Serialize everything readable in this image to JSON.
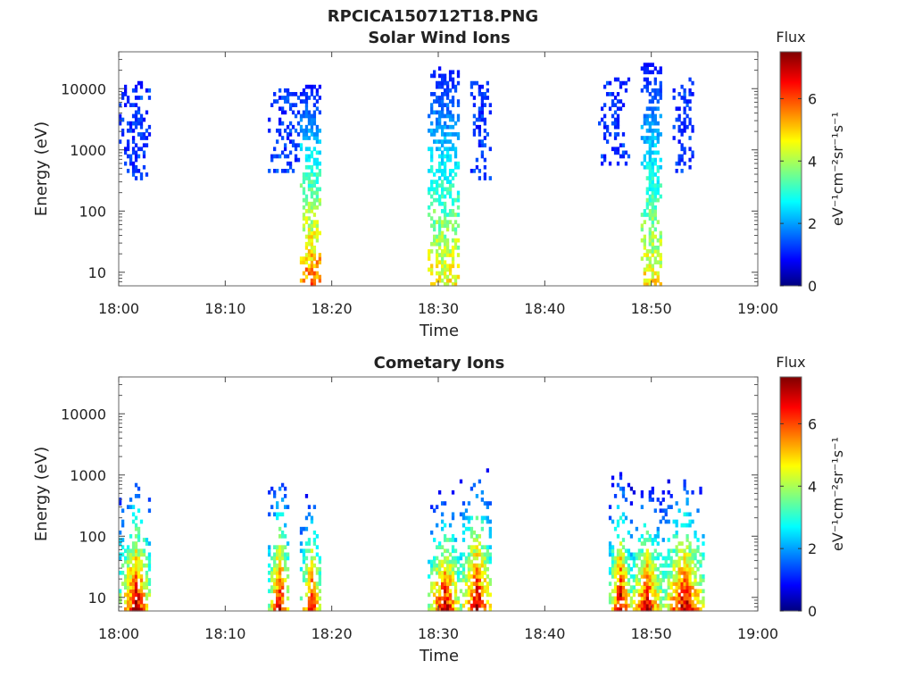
{
  "figure": {
    "title": "RPCICA150712T18.PNG"
  },
  "chart_data": [
    {
      "type": "heatmap",
      "title": "Solar Wind Ions",
      "xlabel": "Time",
      "ylabel": "Energy (eV)",
      "y_scale": "log",
      "ylim": [
        6,
        40000
      ],
      "xlim": [
        "18:00",
        "19:00"
      ],
      "x_ticks": [
        "18:00",
        "18:10",
        "18:20",
        "18:30",
        "18:40",
        "18:50",
        "19:00"
      ],
      "y_ticks": [
        "10",
        "100",
        "1000",
        "10000"
      ],
      "colorbar": {
        "label": "Flux",
        "units": "eV⁻¹cm⁻²sr⁻¹s⁻¹",
        "range": [
          0,
          7.5
        ],
        "ticks": [
          "0",
          "2",
          "4",
          "6"
        ],
        "colormap": "jet"
      },
      "bursts": [
        {
          "t": [
            "18:00",
            "18:03"
          ],
          "energy_eV": [
            300,
            12000
          ],
          "peak_flux": 1.6
        },
        {
          "t": [
            "18:14",
            "18:17"
          ],
          "energy_eV": [
            400,
            9000
          ],
          "peak_flux": 1.8
        },
        {
          "t": [
            "18:17",
            "18:19"
          ],
          "energy_eV": [
            6,
            11000
          ],
          "peak_flux": 6.0
        },
        {
          "t": [
            "18:29",
            "18:32"
          ],
          "energy_eV": [
            6,
            23000
          ],
          "peak_flux": 5.0
        },
        {
          "t": [
            "18:33",
            "18:35"
          ],
          "energy_eV": [
            300,
            13000
          ],
          "peak_flux": 1.6
        },
        {
          "t": [
            "18:45",
            "18:48"
          ],
          "energy_eV": [
            500,
            14000
          ],
          "peak_flux": 1.8
        },
        {
          "t": [
            "18:49",
            "18:51"
          ],
          "energy_eV": [
            6,
            25000
          ],
          "peak_flux": 5.0
        },
        {
          "t": [
            "18:52",
            "18:54"
          ],
          "energy_eV": [
            400,
            15000
          ],
          "peak_flux": 1.6
        }
      ]
    },
    {
      "type": "heatmap",
      "title": "Cometary Ions",
      "xlabel": "Time",
      "ylabel": "Energy (eV)",
      "y_scale": "log",
      "ylim": [
        6,
        40000
      ],
      "xlim": [
        "18:00",
        "19:00"
      ],
      "x_ticks": [
        "18:00",
        "18:10",
        "18:20",
        "18:30",
        "18:40",
        "18:50",
        "19:00"
      ],
      "y_ticks": [
        "10",
        "100",
        "1000",
        "10000"
      ],
      "colorbar": {
        "label": "Flux",
        "units": "eV⁻¹cm⁻²sr⁻¹s⁻¹",
        "range": [
          0,
          7.5
        ],
        "ticks": [
          "0",
          "2",
          "4",
          "6"
        ],
        "colormap": "jet"
      },
      "bursts": [
        {
          "t": [
            "18:00",
            "18:03"
          ],
          "energy_eV": [
            6,
            900
          ],
          "peak_flux": 7.2
        },
        {
          "t": [
            "18:14",
            "18:16"
          ],
          "energy_eV": [
            6,
            1100
          ],
          "peak_flux": 7.0
        },
        {
          "t": [
            "18:17",
            "18:19"
          ],
          "energy_eV": [
            6,
            500
          ],
          "peak_flux": 7.0
        },
        {
          "t": [
            "18:29",
            "18:32"
          ],
          "energy_eV": [
            6,
            500
          ],
          "peak_flux": 7.2
        },
        {
          "t": [
            "18:32",
            "18:35"
          ],
          "energy_eV": [
            6,
            1200
          ],
          "peak_flux": 7.2
        },
        {
          "t": [
            "18:46",
            "18:48"
          ],
          "energy_eV": [
            6,
            1000
          ],
          "peak_flux": 7.2
        },
        {
          "t": [
            "18:48",
            "18:51"
          ],
          "energy_eV": [
            6,
            600
          ],
          "peak_flux": 7.0
        },
        {
          "t": [
            "18:51",
            "18:55"
          ],
          "energy_eV": [
            6,
            800
          ],
          "peak_flux": 7.2
        }
      ]
    }
  ]
}
